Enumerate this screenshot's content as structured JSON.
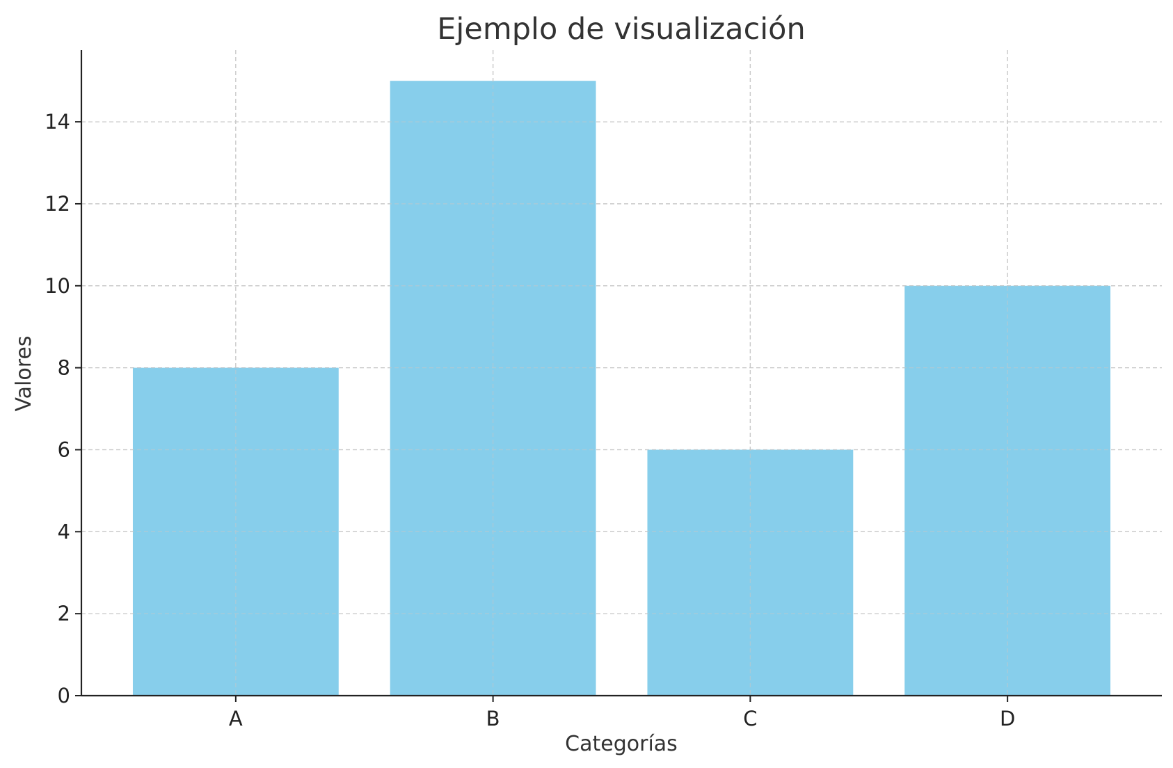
{
  "chart_data": {
    "type": "bar",
    "title": "Ejemplo de visualización",
    "xlabel": "Categorías",
    "ylabel": "Valores",
    "categories": [
      "A",
      "B",
      "C",
      "D"
    ],
    "values": [
      8,
      15,
      6,
      10
    ],
    "ylim": [
      0,
      15.75
    ],
    "yticks": [
      0,
      2,
      4,
      6,
      8,
      10,
      12,
      14
    ],
    "grid": true,
    "grid_style": "dashed",
    "bar_color": "#87CEEB",
    "legend": false
  }
}
